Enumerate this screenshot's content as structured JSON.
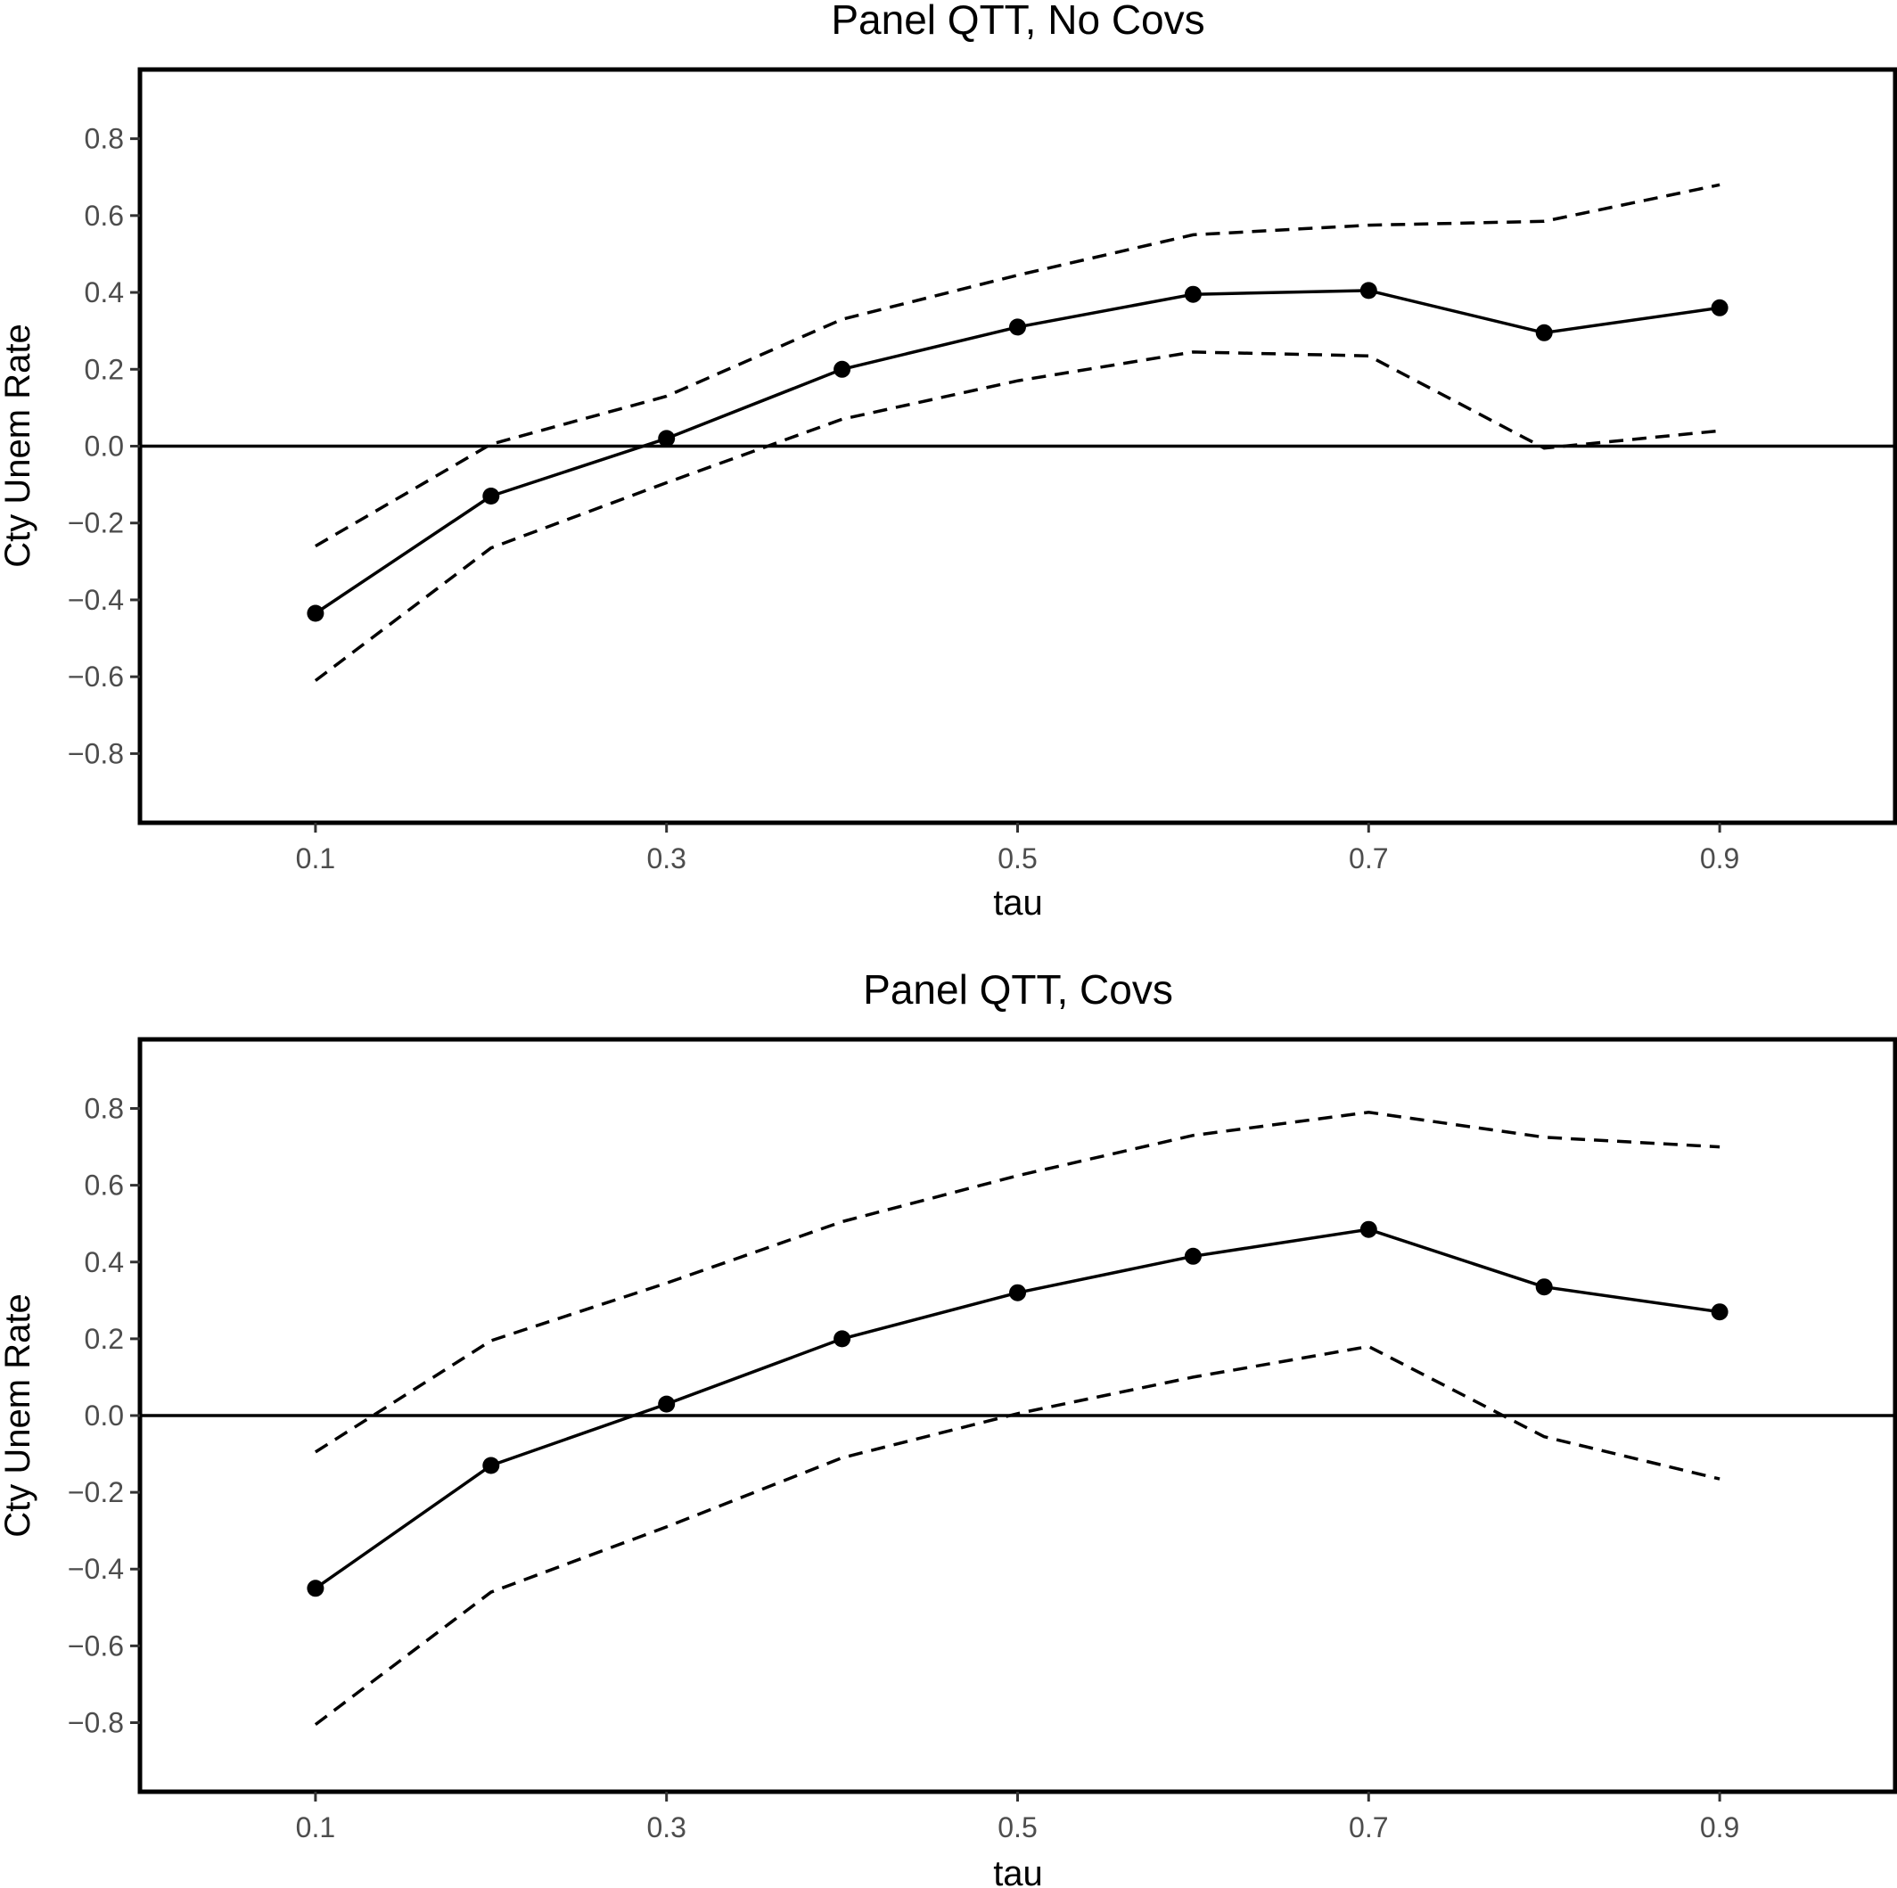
{
  "chart_data": [
    {
      "type": "line",
      "title": "Panel QTT, No Covs",
      "xlabel": "tau",
      "ylabel": "Cty Unem Rate",
      "x": [
        0.1,
        0.2,
        0.3,
        0.4,
        0.5,
        0.6,
        0.7,
        0.8,
        0.9
      ],
      "xticks": [
        "0.1",
        "0.3",
        "0.5",
        "0.7",
        "0.9"
      ],
      "yticks": [
        "0.8",
        "0.6",
        "0.4",
        "0.2",
        "0.0",
        "−0.2",
        "−0.4",
        "−0.6",
        "−0.8"
      ],
      "xlim": [
        0.0,
        1.0
      ],
      "ylim": [
        -0.98,
        0.98
      ],
      "hline": 0,
      "series": [
        {
          "style": "solid-points",
          "values": [
            -0.435,
            -0.13,
            0.02,
            0.2,
            0.31,
            0.395,
            0.405,
            0.295,
            0.36
          ]
        },
        {
          "style": "dashed",
          "values": [
            -0.26,
            0.005,
            0.13,
            0.33,
            0.445,
            0.55,
            0.575,
            0.585,
            0.68
          ]
        },
        {
          "style": "dashed",
          "values": [
            -0.61,
            -0.265,
            -0.095,
            0.07,
            0.17,
            0.245,
            0.235,
            -0.005,
            0.04
          ]
        }
      ],
      "grid": false
    },
    {
      "type": "line",
      "title": "Panel QTT, Covs",
      "xlabel": "tau",
      "ylabel": "Cty Unem Rate",
      "x": [
        0.1,
        0.2,
        0.3,
        0.4,
        0.5,
        0.6,
        0.7,
        0.8,
        0.9
      ],
      "xticks": [
        "0.1",
        "0.3",
        "0.5",
        "0.7",
        "0.9"
      ],
      "yticks": [
        "0.8",
        "0.6",
        "0.4",
        "0.2",
        "0.0",
        "−0.2",
        "−0.4",
        "−0.6",
        "−0.8"
      ],
      "xlim": [
        0.0,
        1.0
      ],
      "ylim": [
        -0.98,
        0.98
      ],
      "hline": 0,
      "series": [
        {
          "style": "solid-points",
          "values": [
            -0.45,
            -0.13,
            0.03,
            0.2,
            0.32,
            0.415,
            0.485,
            0.335,
            0.27
          ]
        },
        {
          "style": "dashed",
          "values": [
            -0.095,
            0.195,
            0.345,
            0.505,
            0.625,
            0.73,
            0.79,
            0.725,
            0.7
          ]
        },
        {
          "style": "dashed",
          "values": [
            -0.805,
            -0.46,
            -0.29,
            -0.11,
            0.005,
            0.1,
            0.18,
            -0.055,
            -0.165
          ]
        }
      ],
      "grid": false
    }
  ]
}
